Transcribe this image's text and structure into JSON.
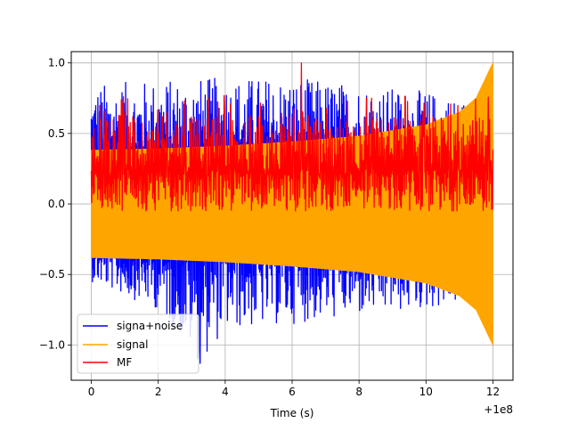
{
  "chart_data": {
    "type": "line",
    "xlabel": "Time (s)",
    "x_offset_label": "+1e8",
    "xlim": [
      -0.6,
      12.6
    ],
    "ylim": [
      -1.25,
      1.08
    ],
    "x_ticks": [
      0,
      2,
      4,
      6,
      8,
      10,
      12
    ],
    "x_tick_labels": [
      "0",
      "2",
      "4",
      "6",
      "8",
      "10",
      "12"
    ],
    "y_ticks": [
      1.0,
      0.5,
      0.0,
      -0.5,
      -1.0
    ],
    "y_tick_labels": [
      "1.0",
      "0.5",
      "0.0",
      "−0.5",
      "−1.0"
    ],
    "grid": true,
    "legend_position": "lower-left",
    "series": [
      {
        "name": "signa+noise",
        "color": "#0000ff",
        "x_range": [
          0,
          12
        ],
        "upper_envelope_x": [
          0,
          2,
          4,
          6,
          8,
          10,
          11,
          11.5,
          12
        ],
        "upper_envelope_y": [
          0.85,
          0.88,
          0.9,
          0.9,
          0.85,
          0.8,
          0.75,
          0.7,
          0.62
        ],
        "lower_envelope_x": [
          0,
          2,
          3.25,
          4,
          6,
          8,
          10,
          11,
          12
        ],
        "lower_envelope_y": [
          -0.55,
          -0.75,
          -1.13,
          -0.9,
          -0.85,
          -0.8,
          -0.75,
          -0.7,
          -0.6
        ]
      },
      {
        "name": "signal",
        "color": "#ffa500",
        "x_range": [
          0,
          12
        ],
        "amplitude_x": [
          0,
          2,
          4,
          6,
          8,
          10,
          11,
          11.5,
          12
        ],
        "amplitude_y": [
          0.38,
          0.39,
          0.41,
          0.44,
          0.48,
          0.56,
          0.65,
          0.75,
          1.0
        ]
      },
      {
        "name": "MF",
        "color": "#ff0000",
        "x_range": [
          0,
          12
        ],
        "range_y": [
          -0.05,
          1.0
        ],
        "peak": [
          6.28,
          1.0
        ]
      }
    ]
  }
}
